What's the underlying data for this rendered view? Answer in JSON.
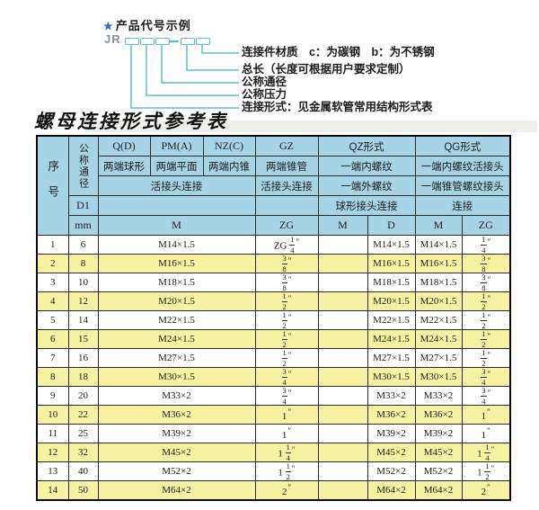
{
  "diagram": {
    "star": "★",
    "heading": "产品代号示例",
    "prefix": "JR",
    "labels": [
      "连接件材质　c：为碳钢　b：为不锈钢",
      "总长（长度可根据用户要求定制）",
      "公称通径",
      "公称压力",
      "连接形式：见金属软管常用结构形式表"
    ]
  },
  "table_title": "螺母连接形式参考表",
  "table": {
    "header": {
      "seq": "序号",
      "bore": "公称通径",
      "d1": "D1",
      "unit": "mm",
      "q": "Q(D)",
      "pm": "PM(A)",
      "nz": "NZ(C)",
      "gz": "GZ",
      "qz": "QZ形式",
      "qg": "QG形式",
      "q_sub": "两端球形",
      "pm_sub": "两端平面",
      "nz_sub": "两端内锥",
      "gz_sub": "两端锥管",
      "qz_sub": "一端内螺纹",
      "qg_sub": "一端内螺纹活接头",
      "union_conn": "活接头连接",
      "gz_conn": "活接头连接",
      "qz_sub2": "一端外螺纹",
      "qg_sub2": "一端锥管螺纹接头",
      "ball_conn": "球形接头连接",
      "qg_conn": "连接",
      "m": "M",
      "zg": "ZG",
      "qz_m": "M",
      "qz_d": "D",
      "qg_m": "M",
      "qg_zg": "ZG"
    },
    "rows": [
      {
        "no": "1",
        "dn": "6",
        "m": "M14×1.5",
        "zg": "ZG 1/4″",
        "qz_m": "",
        "qz_d": "M14×1.5",
        "qg_m": "M14×1.5",
        "qg_zg": "1/4″"
      },
      {
        "no": "2",
        "dn": "8",
        "m": "M16×1.5",
        "zg": "3/8″",
        "qz_m": "",
        "qz_d": "M16×1.5",
        "qg_m": "M16×1.5",
        "qg_zg": "3/8″"
      },
      {
        "no": "3",
        "dn": "10",
        "m": "M18×1.5",
        "zg": "3/8″",
        "qz_m": "",
        "qz_d": "M18×1.5",
        "qg_m": "M18×1.5",
        "qg_zg": "3/8″"
      },
      {
        "no": "4",
        "dn": "12",
        "m": "M20×1.5",
        "zg": "1/2″",
        "qz_m": "",
        "qz_d": "M20×1.5",
        "qg_m": "M20×1.5",
        "qg_zg": "1/2″"
      },
      {
        "no": "5",
        "dn": "14",
        "m": "M22×1.5",
        "zg": "1/2″",
        "qz_m": "",
        "qz_d": "M22×1.5",
        "qg_m": "M22×1.5",
        "qg_zg": "1/2″"
      },
      {
        "no": "6",
        "dn": "15",
        "m": "M24×1.5",
        "zg": "1/2″",
        "qz_m": "",
        "qz_d": "M24×1.5",
        "qg_m": "M24×1.5",
        "qg_zg": "1/2″"
      },
      {
        "no": "7",
        "dn": "16",
        "m": "M27×1.5",
        "zg": "1/2″",
        "qz_m": "",
        "qz_d": "M27×1.5",
        "qg_m": "M27×1.5",
        "qg_zg": "1/2″"
      },
      {
        "no": "8",
        "dn": "18",
        "m": "M30×1.5",
        "zg": "3/4″",
        "qz_m": "",
        "qz_d": "M30×1.5",
        "qg_m": "M30×1.5",
        "qg_zg": "3/4″"
      },
      {
        "no": "9",
        "dn": "20",
        "m": "M33×2",
        "zg": "3/4″",
        "qz_m": "",
        "qz_d": "M33×2",
        "qg_m": "M33×2",
        "qg_zg": "3/4″"
      },
      {
        "no": "10",
        "dn": "22",
        "m": "M36×2",
        "zg": "1″",
        "qz_m": "",
        "qz_d": "M36×2",
        "qg_m": "M36×2",
        "qg_zg": "1″"
      },
      {
        "no": "11",
        "dn": "25",
        "m": "M39×2",
        "zg": "1″",
        "qz_m": "",
        "qz_d": "M39×2",
        "qg_m": "M39×2",
        "qg_zg": "1″"
      },
      {
        "no": "12",
        "dn": "32",
        "m": "M45×2",
        "zg": "1 1/4″",
        "qz_m": "",
        "qz_d": "M45×2",
        "qg_m": "M45×2",
        "qg_zg": "1 1/4″"
      },
      {
        "no": "13",
        "dn": "40",
        "m": "M52×2",
        "zg": "1 1/2″",
        "qz_m": "",
        "qz_d": "M52×2",
        "qg_m": "M52×2",
        "qg_zg": "1 1/2″"
      },
      {
        "no": "14",
        "dn": "50",
        "m": "M64×2",
        "zg": "2″",
        "qz_m": "",
        "qz_d": "M64×2",
        "qg_m": "M64×2",
        "qg_zg": "2″"
      }
    ]
  },
  "colors": {
    "header_bg": "#a7d3e7",
    "row_alt_bg": "#f7f2a1",
    "border": "#2b2b2b",
    "outer": "#0a0a0a",
    "accent_cyan": "#58bbd6",
    "line_cyan": "#8accdb",
    "star_blue": "#2e6fd0",
    "jr_gray": "#8a9097",
    "text": "#1c1c1c"
  }
}
